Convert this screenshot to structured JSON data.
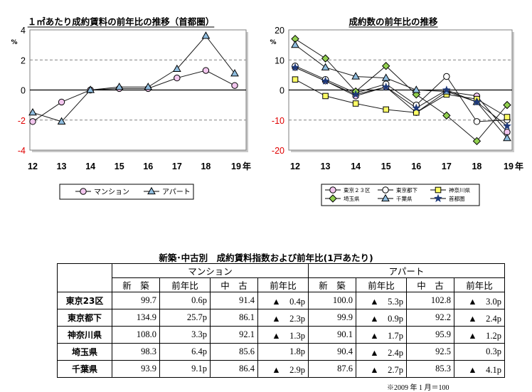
{
  "chart_data": [
    {
      "type": "line",
      "title": "１㎡あたり成約賃料の前年比の推移（首都圏）",
      "ylabel": "%",
      "xlabel": "",
      "x_suffix": "年",
      "categories": [
        "12",
        "13",
        "14",
        "15",
        "16",
        "17",
        "18",
        "19"
      ],
      "ylim": [
        -4,
        4
      ],
      "yticks": [
        4,
        2,
        0,
        -2,
        -4
      ],
      "ytick_labels": [
        "4",
        "2",
        "0",
        "-2",
        "-4"
      ],
      "grid": "horizontal dashed",
      "series": [
        {
          "name": "マンション",
          "marker": "circle",
          "color": "#f2c6ee",
          "values": [
            -2.1,
            -0.8,
            0.0,
            0.1,
            0.1,
            0.8,
            1.3,
            0.3
          ]
        },
        {
          "name": "アパート",
          "marker": "triangle",
          "color": "#8fbddf",
          "values": [
            -1.5,
            -2.1,
            0.0,
            0.2,
            0.2,
            1.4,
            3.6,
            1.1
          ]
        }
      ],
      "legend": "bottom"
    },
    {
      "type": "line",
      "title": "成約数の前年比の推移",
      "ylabel": "%",
      "xlabel": "",
      "x_suffix": "年",
      "categories": [
        "12",
        "13",
        "14",
        "15",
        "16",
        "17",
        "18",
        "19"
      ],
      "ylim": [
        -20,
        20
      ],
      "yticks": [
        20,
        10,
        0,
        -10,
        -20
      ],
      "ytick_labels": [
        "20",
        "10",
        "0",
        "-10",
        "-20"
      ],
      "grid": "horizontal dashed",
      "series": [
        {
          "name": "東京２３区",
          "marker": "circle",
          "color": "#f2c6ee",
          "values": [
            7.5,
            3.0,
            -2.0,
            1.0,
            -7.5,
            -0.5,
            -2.0,
            -14.0
          ]
        },
        {
          "name": "東京都下",
          "marker": "circle",
          "color": "#ffffff",
          "values": [
            8.0,
            3.5,
            -1.0,
            2.0,
            -5.0,
            4.5,
            -10.5,
            -10.0
          ]
        },
        {
          "name": "神奈川県",
          "marker": "square",
          "color": "#ffff66",
          "values": [
            3.5,
            -2.0,
            -4.5,
            -6.5,
            -7.5,
            -1.5,
            -3.0,
            -9.0
          ]
        },
        {
          "name": "埼玉県",
          "marker": "diamond",
          "color": "#92d050",
          "values": [
            17.0,
            10.5,
            -0.5,
            8.0,
            -1.5,
            -8.5,
            -17.0,
            -5.0
          ]
        },
        {
          "name": "千葉県",
          "marker": "triangle",
          "color": "#8fbddf",
          "values": [
            15.0,
            7.5,
            4.5,
            4.0,
            0.0,
            -0.5,
            -4.0,
            -16.0
          ]
        },
        {
          "name": "首都圏",
          "marker": "star",
          "color": "#1f3a7a",
          "values": [
            7.5,
            3.0,
            -1.5,
            1.0,
            -6.0,
            0.0,
            -4.0,
            -12.0
          ]
        }
      ],
      "legend": "bottom"
    },
    {
      "type": "table",
      "title": "新築･中古別　成約賃料指数および前年比(1戸あたり)",
      "group_headers": [
        "マンション",
        "アパート"
      ],
      "sub_headers": [
        "新　築",
        "前年比",
        "中　古",
        "前年比",
        "新　築",
        "前年比",
        "中　古",
        "前年比"
      ],
      "rows": [
        {
          "label": "東京23区",
          "cells": [
            "99.7",
            "0.6p",
            "91.4",
            "▲　0.4p",
            "100.0",
            "▲　5.3p",
            "102.8",
            "▲　3.0p"
          ]
        },
        {
          "label": "東京都下",
          "cells": [
            "134.9",
            "25.7p",
            "86.1",
            "▲　2.3p",
            "99.9",
            "▲　0.9p",
            "92.2",
            "▲　2.4p"
          ]
        },
        {
          "label": "神奈川県",
          "cells": [
            "108.0",
            "3.3p",
            "92.1",
            "▲　1.3p",
            "90.1",
            "▲　1.7p",
            "95.9",
            "▲　1.2p"
          ]
        },
        {
          "label": "埼玉県",
          "cells": [
            "98.3",
            "6.4p",
            "85.6",
            "1.8p",
            "90.4",
            "▲　2.4p",
            "92.5",
            "0.3p"
          ]
        },
        {
          "label": "千葉県",
          "cells": [
            "93.9",
            "9.1p",
            "86.4",
            "▲　2.9p",
            "87.6",
            "▲　2.7p",
            "85.3",
            "▲　4.1p"
          ]
        }
      ],
      "note": "※2009 年 1 月＝100"
    }
  ]
}
